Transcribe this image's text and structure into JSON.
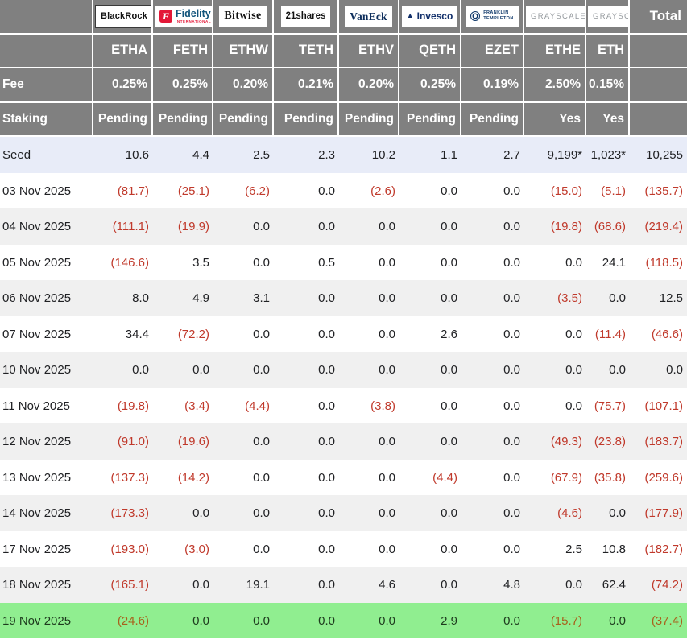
{
  "header": {
    "total_label": "Total",
    "fee_label": "Fee",
    "staking_label": "Staking"
  },
  "providers": [
    {
      "name": "BlackRock",
      "logo": "blackrock",
      "ticker": "ETHA",
      "fee": "0.25%",
      "staking": "Pending"
    },
    {
      "name": "Fidelity",
      "logo": "fidelity",
      "logo_sub": "INTERNATIONAL",
      "ticker": "FETH",
      "fee": "0.25%",
      "staking": "Pending"
    },
    {
      "name": "Bitwise",
      "logo": "bitwise",
      "ticker": "ETHW",
      "fee": "0.20%",
      "staking": "Pending"
    },
    {
      "name": "21shares",
      "logo": "shares21",
      "ticker": "TETH",
      "fee": "0.21%",
      "staking": "Pending"
    },
    {
      "name": "VanEck",
      "logo": "vaneck",
      "ticker": "ETHV",
      "fee": "0.20%",
      "staking": "Pending"
    },
    {
      "name": "Invesco",
      "logo": "invesco",
      "ticker": "QETH",
      "fee": "0.25%",
      "staking": "Pending"
    },
    {
      "name": "Franklin Templeton",
      "logo": "franklin",
      "ticker": "EZET",
      "fee": "0.19%",
      "staking": "Pending"
    },
    {
      "name": "Grayscale",
      "logo": "grayscale",
      "ticker": "ETHE",
      "fee": "2.50%",
      "staking": "Yes"
    },
    {
      "name": "Grayscale",
      "logo": "grayscale",
      "ticker": "ETH",
      "fee": "0.15%",
      "staking": "Yes"
    }
  ],
  "seed_row": {
    "label": "Seed",
    "values": [
      "10.6",
      "4.4",
      "2.5",
      "2.3",
      "10.2",
      "1.1",
      "2.7",
      "9,199*",
      "1,023*",
      "10,255"
    ]
  },
  "flow_rows": [
    {
      "date": "03 Nov 2025",
      "values": [
        "(81.7)",
        "(25.1)",
        "(6.2)",
        "0.0",
        "(2.6)",
        "0.0",
        "0.0",
        "(15.0)",
        "(5.1)",
        "(135.7)"
      ]
    },
    {
      "date": "04 Nov 2025",
      "values": [
        "(111.1)",
        "(19.9)",
        "0.0",
        "0.0",
        "0.0",
        "0.0",
        "0.0",
        "(19.8)",
        "(68.6)",
        "(219.4)"
      ]
    },
    {
      "date": "05 Nov 2025",
      "values": [
        "(146.6)",
        "3.5",
        "0.0",
        "0.5",
        "0.0",
        "0.0",
        "0.0",
        "0.0",
        "24.1",
        "(118.5)"
      ]
    },
    {
      "date": "06 Nov 2025",
      "values": [
        "8.0",
        "4.9",
        "3.1",
        "0.0",
        "0.0",
        "0.0",
        "0.0",
        "(3.5)",
        "0.0",
        "12.5"
      ]
    },
    {
      "date": "07 Nov 2025",
      "values": [
        "34.4",
        "(72.2)",
        "0.0",
        "0.0",
        "0.0",
        "2.6",
        "0.0",
        "0.0",
        "(11.4)",
        "(46.6)"
      ]
    },
    {
      "date": "10 Nov 2025",
      "values": [
        "0.0",
        "0.0",
        "0.0",
        "0.0",
        "0.0",
        "0.0",
        "0.0",
        "0.0",
        "0.0",
        "0.0"
      ]
    },
    {
      "date": "11 Nov 2025",
      "values": [
        "(19.8)",
        "(3.4)",
        "(4.4)",
        "0.0",
        "(3.8)",
        "0.0",
        "0.0",
        "0.0",
        "(75.7)",
        "(107.1)"
      ]
    },
    {
      "date": "12 Nov 2025",
      "values": [
        "(91.0)",
        "(19.6)",
        "0.0",
        "0.0",
        "0.0",
        "0.0",
        "0.0",
        "(49.3)",
        "(23.8)",
        "(183.7)"
      ]
    },
    {
      "date": "13 Nov 2025",
      "values": [
        "(137.3)",
        "(14.2)",
        "0.0",
        "0.0",
        "0.0",
        "(4.4)",
        "0.0",
        "(67.9)",
        "(35.8)",
        "(259.6)"
      ]
    },
    {
      "date": "14 Nov 2025",
      "values": [
        "(173.3)",
        "0.0",
        "0.0",
        "0.0",
        "0.0",
        "0.0",
        "0.0",
        "(4.6)",
        "0.0",
        "(177.9)"
      ]
    },
    {
      "date": "17 Nov 2025",
      "values": [
        "(193.0)",
        "(3.0)",
        "0.0",
        "0.0",
        "0.0",
        "0.0",
        "0.0",
        "2.5",
        "10.8",
        "(182.7)"
      ]
    },
    {
      "date": "18 Nov 2025",
      "values": [
        "(165.1)",
        "0.0",
        "19.1",
        "0.0",
        "4.6",
        "0.0",
        "4.8",
        "0.0",
        "62.4",
        "(74.2)"
      ]
    },
    {
      "date": "19 Nov 2025",
      "values": [
        "(24.6)",
        "0.0",
        "0.0",
        "0.0",
        "0.0",
        "2.9",
        "0.0",
        "(15.7)",
        "0.0",
        "(37.4)"
      ],
      "highlight": "green"
    }
  ],
  "colors": {
    "header_bg": "#808080",
    "seed_row_bg": "#e8ecf8",
    "alt_row_bg": "#f0f0f0",
    "latest_row_bg": "#90ee90",
    "negative": "#c0392b",
    "negative_on_green": "#a8611c",
    "text": "#202124"
  }
}
